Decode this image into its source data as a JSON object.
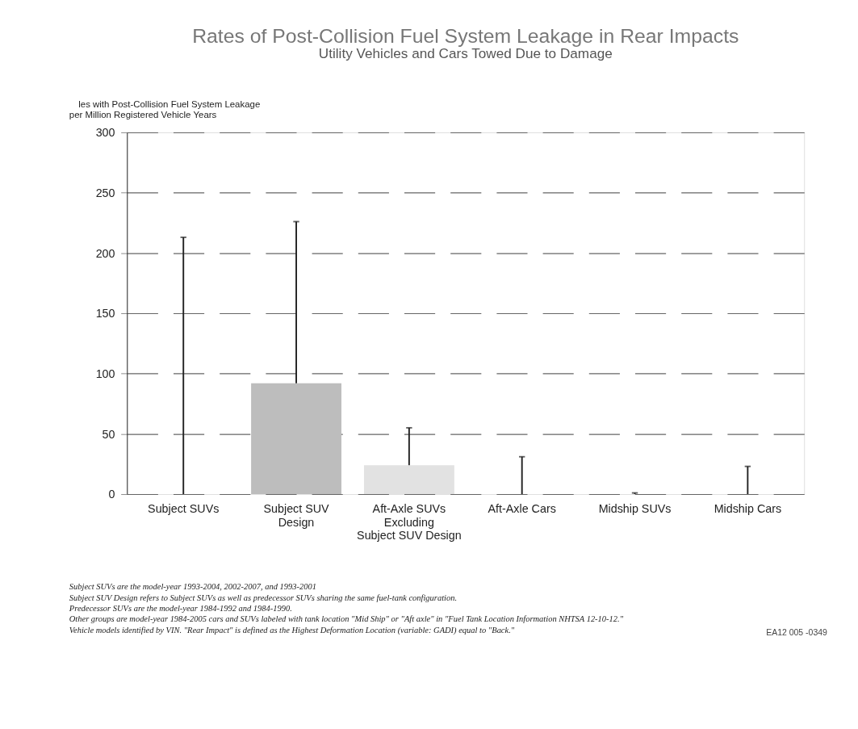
{
  "chart_data": {
    "type": "bar",
    "title": "Rates of Post-Collision Fuel System Leakage in Rear Impacts",
    "subtitle": "Utility Vehicles and Cars Towed Due to Damage",
    "ylabel": "les with Post-Collision Fuel System Leakage\nper Million Registered Vehicle Years",
    "categories": [
      "Subject SUVs",
      "Subject SUV\nDesign",
      "Aft-Axle SUVs\nExcluding\nSubject SUV Design",
      "Aft-Axle Cars",
      "Midship SUVs",
      "Midship Cars"
    ],
    "values": [
      0,
      92,
      24,
      0,
      0,
      0
    ],
    "colors": [
      "#ffffff",
      "#bdbdbd",
      "#e2e2e2",
      "#ffffff",
      "#ffffff",
      "#ffffff"
    ],
    "errors": [
      [
        0,
        213
      ],
      [
        92,
        226
      ],
      [
        24,
        55
      ],
      [
        0,
        31
      ],
      [
        0,
        1
      ],
      [
        0,
        23
      ]
    ],
    "ylim": [
      0,
      300
    ],
    "yticks": [
      0,
      50,
      100,
      150,
      200,
      250,
      300
    ],
    "grid": "y",
    "line_style": "dashed",
    "annotations": [
      "Subject SUVs are the model-year 1993-2004, 2002-2007, and 1993-2001",
      "Subject SUV Design refers to Subject SUVs as well as predecessor SUVs sharing the same fuel-tank configuration.",
      "Predecessor SUVs are the model-year 1984-1992 and 1984-1990.",
      "Other groups are model-year 1984-2005 cars and SUVs labeled with tank location \"Mid Ship\" or \"Aft axle\" in \"Fuel Tank Location Information NHTSA 12-10-12.\"",
      "Vehicle models identified by VIN. \"Rear Impact\" is defined as the Highest Deformation Location (variable: GADI) equal to \"Back.\"",
      "EA12 005 -0349"
    ]
  }
}
